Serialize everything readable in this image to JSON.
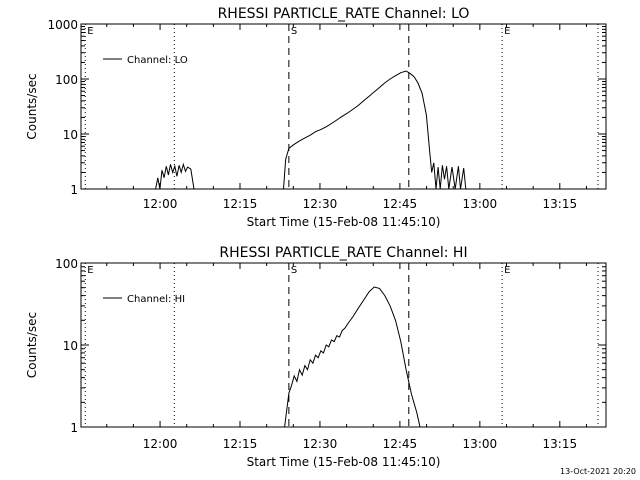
{
  "footer_timestamp": "13-Oct-2021 20:20",
  "chart_data": [
    {
      "type": "line",
      "title": "RHESSI PARTICLE_RATE Channel: LO",
      "xlabel": "Start Time (15-Feb-08 11:45:10)",
      "ylabel": "Counts/sec",
      "yscale": "log",
      "ylim": [
        1,
        1000
      ],
      "xlim_minutes": [
        0,
        98.5
      ],
      "x_ticks": [
        "12:00",
        "12:15",
        "12:30",
        "12:45",
        "13:00",
        "13:15"
      ],
      "y_ticks": [
        "1",
        "10",
        "100",
        "1000"
      ],
      "legend": "Channel: LO",
      "legend_location": "top-left",
      "markers": [
        {
          "label": "E",
          "minute": 0.8,
          "style": "dotted"
        },
        {
          "label": "",
          "minute": 17.5,
          "style": "dotted"
        },
        {
          "label": "S",
          "minute": 39.0,
          "style": "dashed"
        },
        {
          "label": "",
          "minute": 61.5,
          "style": "dashed"
        },
        {
          "label": "E",
          "minute": 79.0,
          "style": "dotted"
        },
        {
          "label": "",
          "minute": 97.0,
          "style": "dotted"
        }
      ],
      "series": [
        {
          "color": "#000000",
          "segments": [
            [
              [
                14.0,
                1
              ],
              [
                14.4,
                1.6
              ],
              [
                14.8,
                1
              ],
              [
                15.2,
                2.2
              ],
              [
                15.6,
                1.6
              ],
              [
                16.0,
                2.6
              ],
              [
                16.4,
                1.8
              ],
              [
                16.8,
                2.8
              ],
              [
                17.2,
                2.0
              ],
              [
                17.6,
                2.6
              ],
              [
                18.0,
                1.7
              ],
              [
                18.4,
                2.7
              ],
              [
                18.8,
                2.0
              ],
              [
                19.2,
                2.8
              ],
              [
                19.6,
                2.1
              ],
              [
                20.0,
                2.5
              ],
              [
                20.6,
                2.3
              ],
              [
                21.2,
                1
              ]
            ],
            [
              [
                38.0,
                1
              ],
              [
                38.4,
                3.5
              ],
              [
                39.0,
                5.5
              ],
              [
                40.0,
                6.5
              ],
              [
                41.0,
                7.5
              ],
              [
                42.0,
                8.5
              ],
              [
                43.0,
                9.5
              ],
              [
                44.0,
                11
              ],
              [
                45.0,
                12
              ],
              [
                46.0,
                13.5
              ],
              [
                47.0,
                15.5
              ],
              [
                48.0,
                18
              ],
              [
                49.0,
                21
              ],
              [
                50.0,
                24
              ],
              [
                51.0,
                28
              ],
              [
                52.0,
                33
              ],
              [
                53.0,
                40
              ],
              [
                54.0,
                48
              ],
              [
                55.0,
                58
              ],
              [
                56.0,
                70
              ],
              [
                57.0,
                85
              ],
              [
                58.0,
                100
              ],
              [
                59.0,
                115
              ],
              [
                60.0,
                130
              ],
              [
                61.0,
                140
              ],
              [
                61.8,
                125
              ],
              [
                62.5,
                110
              ],
              [
                63.2,
                85
              ],
              [
                64.0,
                55
              ],
              [
                64.8,
                22
              ],
              [
                65.4,
                5
              ],
              [
                65.8,
                2
              ],
              [
                66.2,
                3
              ],
              [
                66.6,
                1
              ],
              [
                67.0,
                2.5
              ],
              [
                67.4,
                1
              ],
              [
                67.8,
                2.7
              ],
              [
                68.2,
                1.5
              ],
              [
                68.6,
                2.6
              ],
              [
                69.0,
                1
              ],
              [
                69.6,
                2.5
              ],
              [
                70.2,
                1
              ],
              [
                70.8,
                2.6
              ],
              [
                71.2,
                1
              ],
              [
                71.8,
                2.4
              ],
              [
                72.2,
                1
              ]
            ]
          ]
        }
      ]
    },
    {
      "type": "line",
      "title": "RHESSI PARTICLE_RATE Channel: HI",
      "xlabel": "Start Time (15-Feb-08 11:45:10)",
      "ylabel": "Counts/sec",
      "yscale": "log",
      "ylim": [
        1,
        100
      ],
      "xlim_minutes": [
        0,
        98.5
      ],
      "x_ticks": [
        "12:00",
        "12:15",
        "12:30",
        "12:45",
        "13:00",
        "13:15"
      ],
      "y_ticks": [
        "1",
        "10",
        "100"
      ],
      "legend": "Channel: HI",
      "legend_location": "top-left",
      "markers": [
        {
          "label": "E",
          "minute": 0.8,
          "style": "dotted"
        },
        {
          "label": "",
          "minute": 17.5,
          "style": "dotted"
        },
        {
          "label": "S",
          "minute": 39.0,
          "style": "dashed"
        },
        {
          "label": "",
          "minute": 61.5,
          "style": "dashed"
        },
        {
          "label": "E",
          "minute": 79.0,
          "style": "dotted"
        },
        {
          "label": "",
          "minute": 97.0,
          "style": "dotted"
        }
      ],
      "series": [
        {
          "color": "#000000",
          "segments": [
            [
              [
                38.2,
                1
              ],
              [
                38.6,
                1.6
              ],
              [
                39.0,
                2.6
              ],
              [
                39.5,
                3.2
              ],
              [
                40.0,
                4.2
              ],
              [
                40.5,
                3.6
              ],
              [
                41.0,
                5.0
              ],
              [
                41.5,
                4.3
              ],
              [
                42.0,
                5.6
              ],
              [
                42.5,
                5.0
              ],
              [
                43.0,
                6.6
              ],
              [
                43.5,
                6.0
              ],
              [
                44.0,
                7.5
              ],
              [
                44.5,
                7.0
              ],
              [
                45.0,
                8.5
              ],
              [
                45.5,
                8.0
              ],
              [
                46.0,
                10
              ],
              [
                46.5,
                9.5
              ],
              [
                47.0,
                11.5
              ],
              [
                47.5,
                11
              ],
              [
                48.0,
                13
              ],
              [
                48.5,
                12.5
              ],
              [
                49.0,
                15
              ],
              [
                49.5,
                16
              ],
              [
                50.0,
                18
              ],
              [
                51.0,
                22
              ],
              [
                52.0,
                28
              ],
              [
                53.0,
                35
              ],
              [
                54.0,
                44
              ],
              [
                55.0,
                51
              ],
              [
                56.0,
                49
              ],
              [
                57.0,
                40
              ],
              [
                58.0,
                30
              ],
              [
                59.0,
                20
              ],
              [
                60.0,
                11
              ],
              [
                61.0,
                5
              ],
              [
                62.0,
                2.5
              ],
              [
                63.0,
                1.5
              ],
              [
                63.6,
                1
              ]
            ]
          ]
        }
      ]
    }
  ]
}
